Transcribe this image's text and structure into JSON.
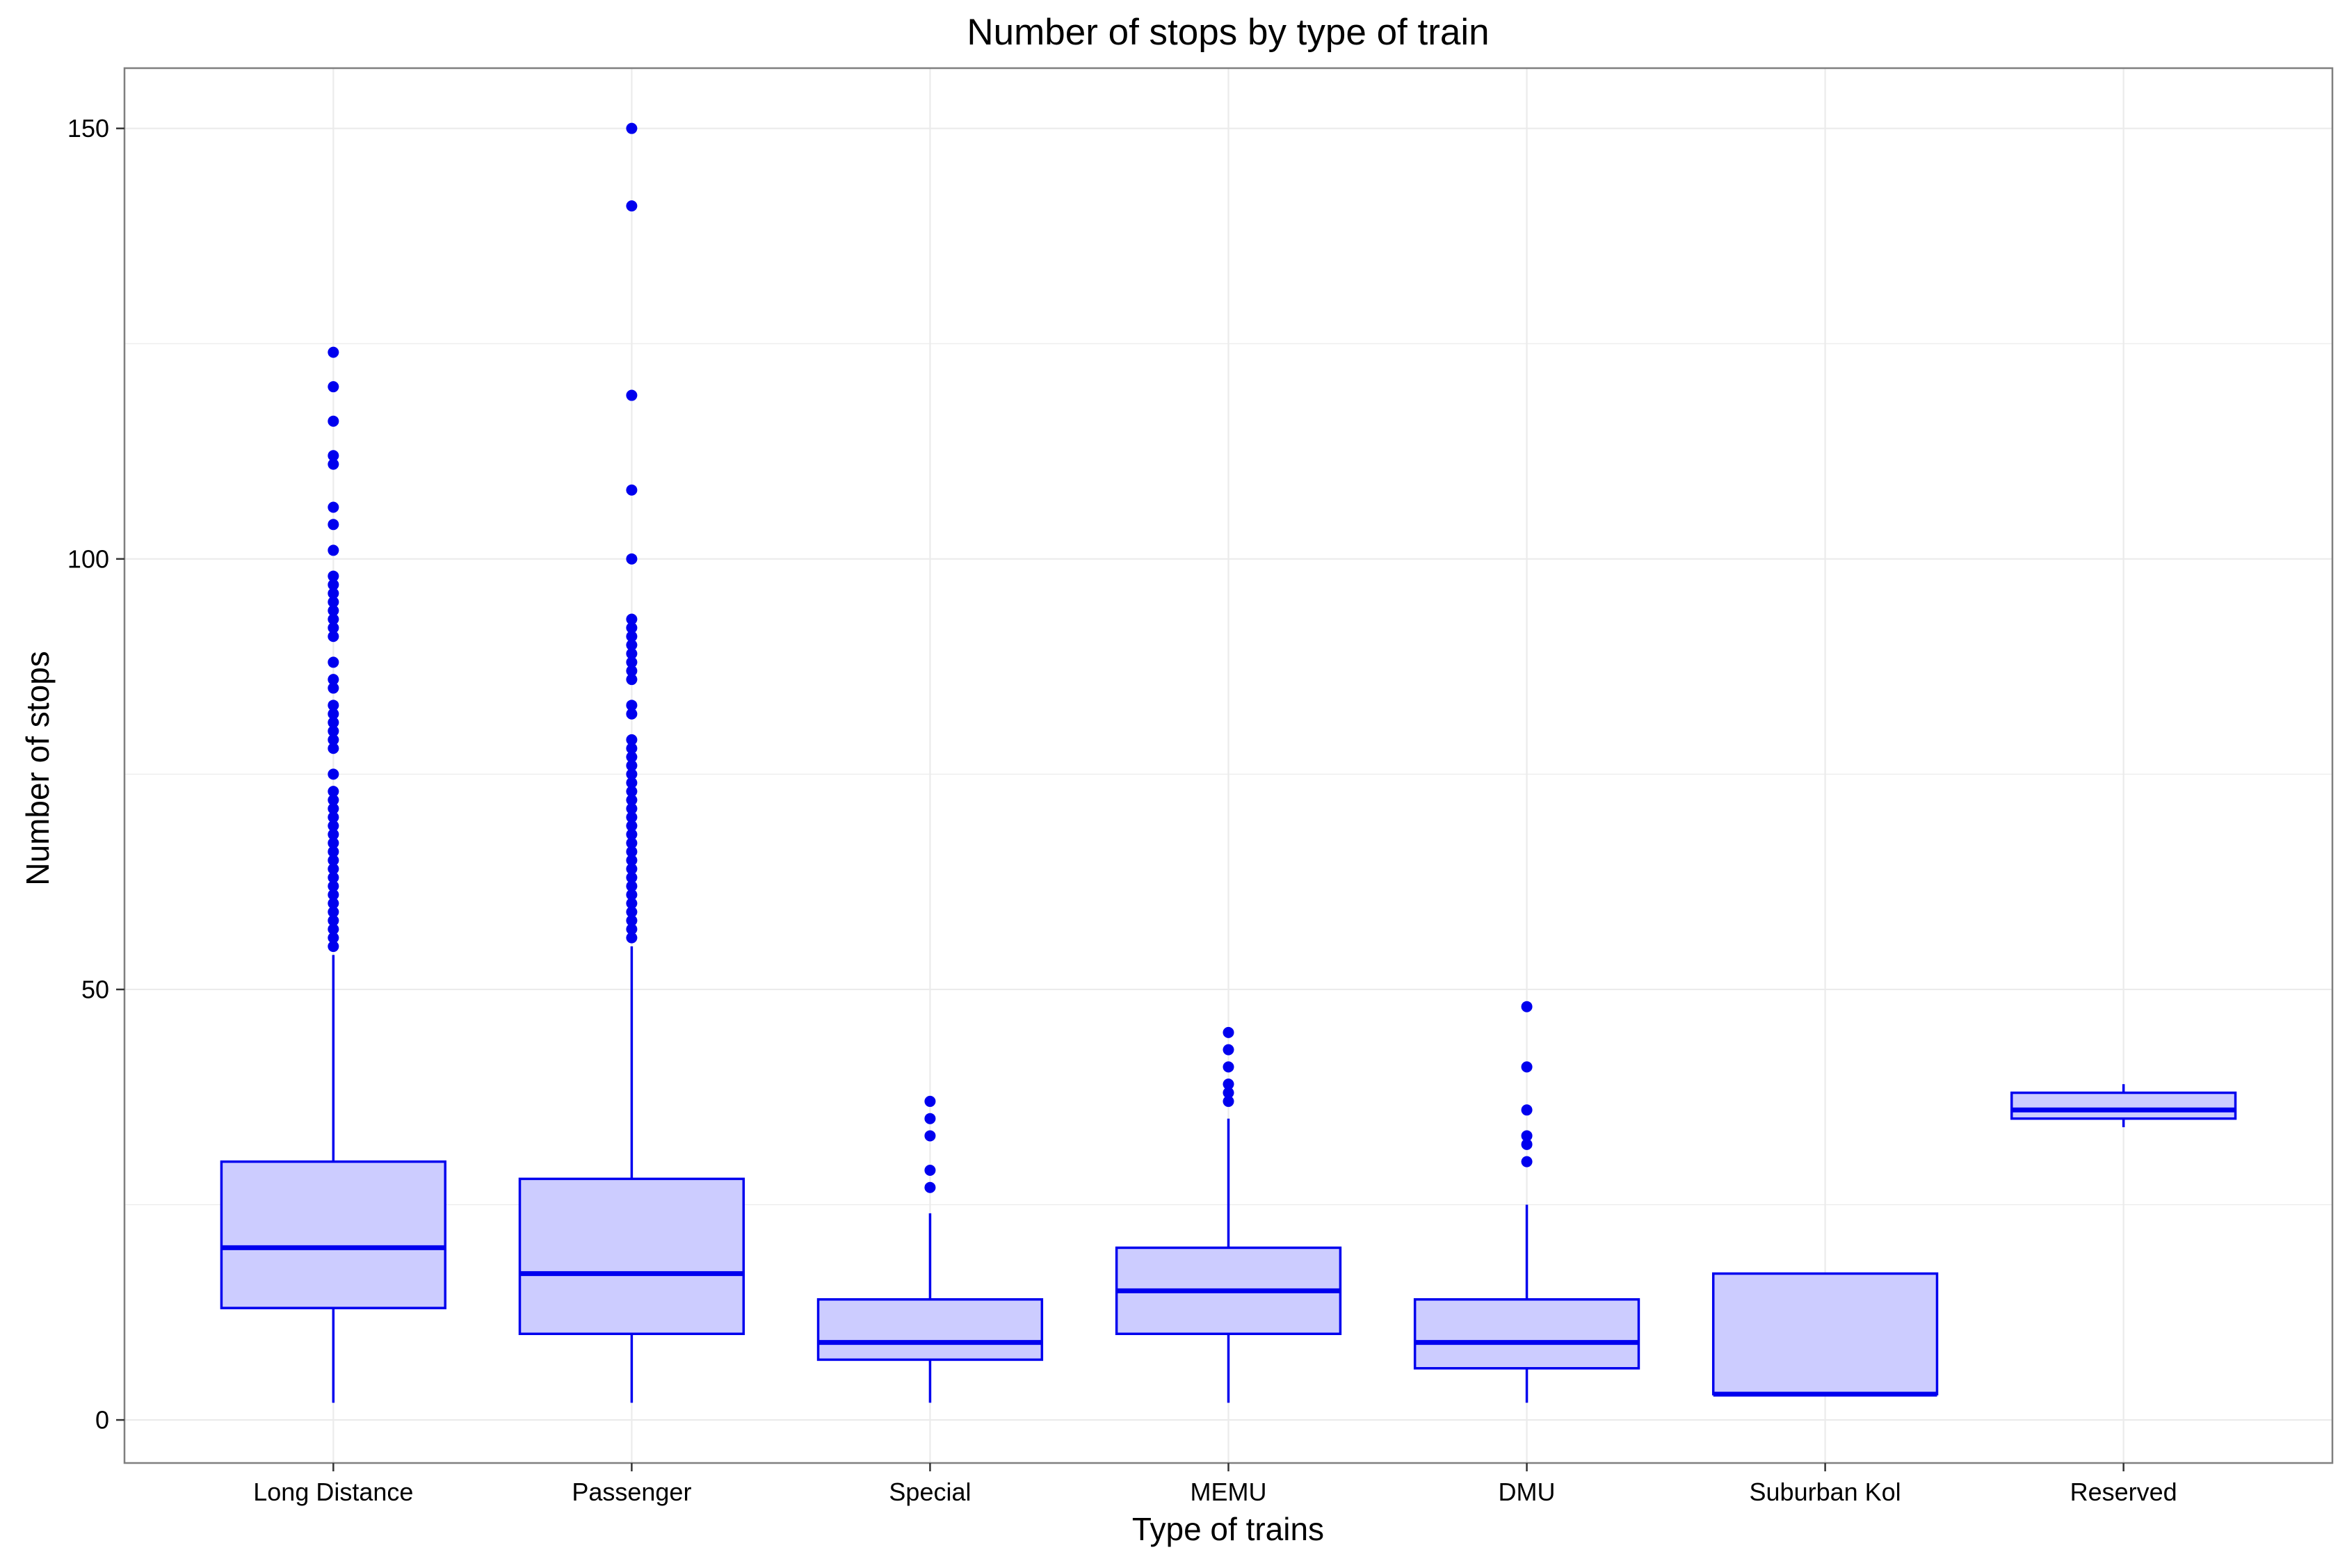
{
  "chart_data": {
    "type": "boxplot",
    "title": "Number of stops by type of train",
    "xlabel": "Type of trains",
    "ylabel": "Number of stops",
    "ylim": [
      -5,
      157
    ],
    "yticks": [
      0,
      50,
      100,
      150
    ],
    "grid": true,
    "colors": {
      "stroke": "#0000ee",
      "fill": "#ccccff",
      "outlier": "#0000ee",
      "grid": "#ebebeb",
      "panel_border": "#7f7f7f"
    },
    "categories": [
      "Long Distance",
      "Passenger",
      "Special",
      "MEMU",
      "DMU",
      "Suburban Kol",
      "Reserved"
    ],
    "boxes": [
      {
        "category": "Long Distance",
        "whisker_low": 2,
        "q1": 13,
        "median": 20,
        "q3": 30,
        "whisker_high": 54,
        "outliers": [
          55,
          56,
          57,
          58,
          59,
          60,
          61,
          62,
          63,
          64,
          65,
          66,
          67,
          68,
          69,
          70,
          71,
          72,
          73,
          75,
          78,
          79,
          80,
          81,
          82,
          83,
          85,
          86,
          88,
          91,
          92,
          93,
          94,
          95,
          96,
          97,
          98,
          101,
          104,
          106,
          111,
          112,
          116,
          120,
          124
        ]
      },
      {
        "category": "Passenger",
        "whisker_low": 2,
        "q1": 10,
        "median": 17,
        "q3": 28,
        "whisker_high": 55,
        "outliers": [
          56,
          57,
          58,
          59,
          60,
          61,
          62,
          63,
          64,
          65,
          66,
          67,
          68,
          69,
          70,
          71,
          72,
          73,
          74,
          75,
          76,
          77,
          78,
          79,
          82,
          83,
          86,
          87,
          88,
          89,
          90,
          91,
          92,
          93,
          100,
          108,
          119,
          141,
          150
        ]
      },
      {
        "category": "Special",
        "whisker_low": 2,
        "q1": 7,
        "median": 9,
        "q3": 14,
        "whisker_high": 24,
        "outliers": [
          27,
          29,
          33,
          35,
          37
        ]
      },
      {
        "category": "MEMU",
        "whisker_low": 2,
        "q1": 10,
        "median": 15,
        "q3": 20,
        "whisker_high": 35,
        "outliers": [
          37,
          38,
          39,
          41,
          43,
          45
        ]
      },
      {
        "category": "DMU",
        "whisker_low": 2,
        "q1": 6,
        "median": 9,
        "q3": 14,
        "whisker_high": 25,
        "outliers": [
          30,
          32,
          33,
          36,
          41,
          48
        ]
      },
      {
        "category": "Suburban Kol",
        "whisker_low": 3,
        "q1": 3,
        "median": 3,
        "q3": 17,
        "whisker_high": 17,
        "outliers": []
      },
      {
        "category": "Reserved",
        "whisker_low": 34,
        "q1": 35,
        "median": 36,
        "q3": 38,
        "whisker_high": 39,
        "outliers": []
      }
    ]
  }
}
